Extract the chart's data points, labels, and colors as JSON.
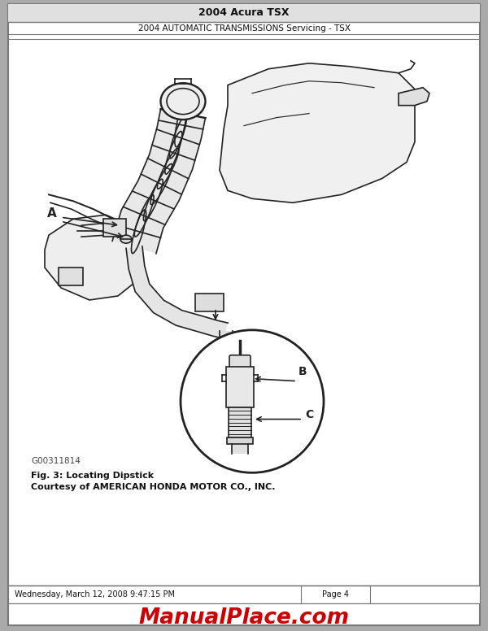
{
  "title": "2004 Acura TSX",
  "subtitle": "2004 AUTOMATIC TRANSMISSIONS Servicing - TSX",
  "fig_caption_line1": "Fig. 3: Locating Dipstick",
  "fig_caption_line2": "Courtesy of AMERICAN HONDA MOTOR CO., INC.",
  "figure_id": "G00311814",
  "footer_left": "Wednesday, March 12, 2008 9:47:15 PM",
  "footer_center": "Page 4",
  "watermark": "ManualPlace.com",
  "bg_color": "#ffffff",
  "header_bg": "#e0e0e0",
  "border_color": "#777777",
  "text_color": "#111111",
  "watermark_color": "#cc0000",
  "line_color": "#222222",
  "gray_fill": "#d8d8d8",
  "page_bg": "#aaaaaa"
}
